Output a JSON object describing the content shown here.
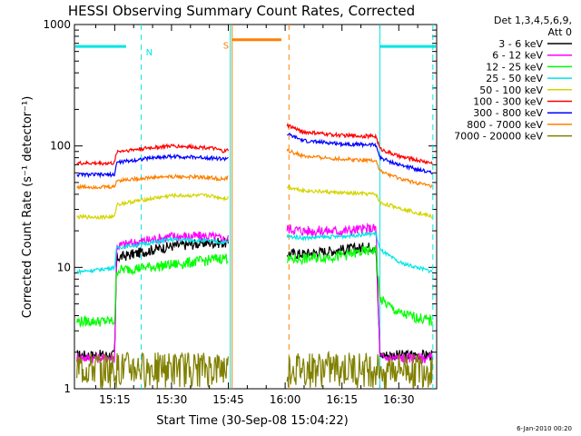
{
  "chart_data": {
    "type": "line",
    "title": "HESSI Observing Summary Count Rates, Corrected",
    "xlabel": "Start Time (30-Sep-08 15:04:22)",
    "ylabel": "Corrected Count Rate (s⁻¹ detector⁻¹)",
    "y_scale": "log",
    "ylim": [
      1,
      1000
    ],
    "xlim": [
      "15:04:22",
      "16:40:00"
    ],
    "x_ticks": [
      "15:15",
      "15:30",
      "15:45",
      "16:00",
      "16:15",
      "16:30"
    ],
    "x_tick_minutes": [
      915,
      930,
      945,
      960,
      975,
      990
    ],
    "y_ticks": [
      1,
      10,
      100,
      1000
    ],
    "y_tick_labels": [
      "1",
      "10",
      "100",
      "1000"
    ],
    "legend_header": [
      "Det 1,3,4,5,6,9,",
      "Att 0"
    ],
    "legend_position": "right",
    "series": [
      {
        "name": "3 - 6 keV",
        "color": "#000000",
        "x": [
          "15:05",
          "15:15",
          "15:15.5",
          "15:25",
          "15:30",
          "15:40",
          "15:44",
          "16:00.5",
          "16:05",
          "16:15",
          "16:24",
          "16:25",
          "16:30",
          "16:39"
        ],
        "y": [
          1.9,
          1.9,
          12,
          14,
          15,
          16,
          16,
          13,
          13,
          14,
          15,
          1.9,
          1.9,
          1.9
        ]
      },
      {
        "name": "6 - 12 keV",
        "color": "#ff00ff",
        "x": [
          "15:05",
          "15:15",
          "15:15.5",
          "15:25",
          "15:30",
          "15:40",
          "15:44",
          "16:00.5",
          "16:05",
          "16:15",
          "16:24",
          "16:25",
          "16:30",
          "16:39"
        ],
        "y": [
          1.8,
          1.8,
          15,
          17,
          18,
          18,
          17,
          21,
          20,
          20,
          21,
          1.8,
          1.8,
          1.8
        ]
      },
      {
        "name": "12 - 25 keV",
        "color": "#00ff00",
        "x": [
          "15:05",
          "15:15",
          "15:15.5",
          "15:20",
          "15:30",
          "15:40",
          "15:44",
          "16:00.5",
          "16:05",
          "16:15",
          "16:24",
          "16:25",
          "16:30",
          "16:39"
        ],
        "y": [
          3.6,
          3.6,
          9.5,
          9.8,
          10.5,
          11.5,
          12,
          11.5,
          11.8,
          12.5,
          14,
          5.5,
          4.2,
          3.6
        ]
      },
      {
        "name": "25 - 50 keV",
        "color": "#00e5e5",
        "x": [
          "15:05",
          "15:10",
          "15:15",
          "15:15.5",
          "15:25",
          "15:30",
          "15:40",
          "15:44",
          "16:00.5",
          "16:05",
          "16:15",
          "16:24",
          "16:25",
          "16:30",
          "16:39"
        ],
        "y": [
          9.2,
          9.5,
          10,
          14.5,
          16,
          17,
          16.5,
          16,
          18,
          17.5,
          18,
          19,
          14,
          11,
          9.2
        ]
      },
      {
        "name": "50 - 100 keV",
        "color": "#d4d400",
        "x": [
          "15:05",
          "15:15",
          "15:15.5",
          "15:25",
          "15:30",
          "15:40",
          "15:44",
          "16:00.5",
          "16:05",
          "16:15",
          "16:24",
          "16:25",
          "16:30",
          "16:39"
        ],
        "y": [
          26,
          26,
          33,
          37,
          39,
          39,
          37,
          46,
          43,
          41,
          40,
          34,
          31,
          26
        ]
      },
      {
        "name": "100 - 300 keV",
        "color": "#ff0000",
        "x": [
          "15:05",
          "15:15",
          "15:15.5",
          "15:25",
          "15:30",
          "15:40",
          "15:44",
          "16:00.5",
          "16:05",
          "16:15",
          "16:24",
          "16:25",
          "16:30",
          "16:39"
        ],
        "y": [
          72,
          72,
          90,
          97,
          100,
          97,
          90,
          148,
          130,
          122,
          120,
          95,
          82,
          72
        ]
      },
      {
        "name": "300 - 800 keV",
        "color": "#0000ff",
        "x": [
          "15:05",
          "15:15",
          "15:15.5",
          "15:25",
          "15:30",
          "15:40",
          "15:44",
          "16:00.5",
          "16:05",
          "16:15",
          "16:24",
          "16:25",
          "16:30",
          "16:39"
        ],
        "y": [
          58,
          58,
          73,
          80,
          82,
          80,
          78,
          125,
          110,
          104,
          102,
          80,
          70,
          60
        ]
      },
      {
        "name": "800 - 7000 keV",
        "color": "#ff8000",
        "x": [
          "15:05",
          "15:15",
          "15:15.5",
          "15:25",
          "15:30",
          "15:40",
          "15:44",
          "16:00.5",
          "16:05",
          "16:15",
          "16:24",
          "16:25",
          "16:30",
          "16:39"
        ],
        "y": [
          46,
          46,
          52,
          55,
          56,
          55,
          53,
          92,
          82,
          78,
          76,
          62,
          54,
          46
        ]
      },
      {
        "name": "7000 - 20000 keV",
        "color": "#808000",
        "x": [
          "15:05",
          "15:15",
          "15:15.5",
          "15:44",
          "16:00.5",
          "16:24",
          "16:25",
          "16:39"
        ],
        "y": [
          1.6,
          1.6,
          1.6,
          1.6,
          1.6,
          1.6,
          1.6,
          1.6
        ]
      }
    ],
    "annotations": [
      {
        "label": "N",
        "color": "#00e5e5",
        "bar_range": [
          "15:04:22",
          "15:18"
        ],
        "y": 660,
        "marker_lines": [
          "15:22",
          "15:45.5",
          "16:25",
          "16:39"
        ],
        "marker_styles": [
          "dashed",
          "solid",
          "solid",
          "dashed"
        ]
      },
      {
        "label": "S",
        "color": "#ff8000",
        "bar_range": [
          "15:46",
          "15:59"
        ],
        "y": 750,
        "marker_lines": [
          "15:46",
          "16:01"
        ],
        "marker_styles": [
          "solid",
          "dashed"
        ]
      },
      {
        "label": "",
        "color": "#00e5e5",
        "bar_range": [
          "16:25",
          "16:40"
        ],
        "y": 660
      }
    ],
    "data_gap": [
      "15:45",
      "16:00.5"
    ],
    "grid": false
  },
  "footer_date": "6-Jan-2010 00:20"
}
